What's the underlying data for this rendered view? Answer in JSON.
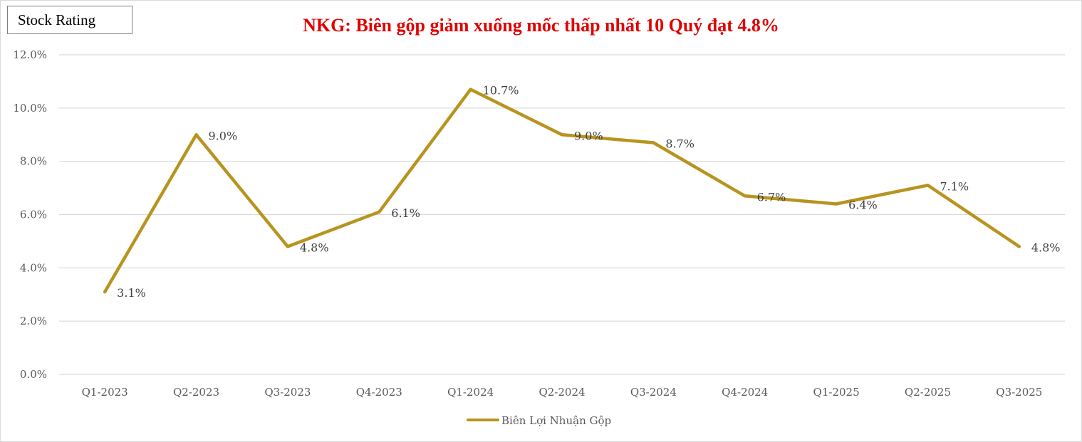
{
  "tag": {
    "label": "Stock Rating"
  },
  "chart_data": {
    "type": "line",
    "title": "NKG: Biên gộp giảm xuống mốc thấp nhất 10 Quý đạt 4.8%",
    "xlabel": "",
    "ylabel": "",
    "categories": [
      "Q1-2023",
      "Q2-2023",
      "Q3-2023",
      "Q4-2023",
      "Q1-2024",
      "Q2-2024",
      "Q3-2024",
      "Q4-2024",
      "Q1-2025",
      "Q2-2025",
      "Q3-2025"
    ],
    "series": [
      {
        "name": "Biên Lợi Nhuận Gộp",
        "values": [
          3.1,
          9.0,
          4.8,
          6.1,
          10.7,
          9.0,
          8.7,
          6.7,
          6.4,
          7.1,
          4.8
        ],
        "labels": [
          "3.1%",
          "9.0%",
          "4.8%",
          "6.1%",
          "10.7%",
          "9.0%",
          "8.7%",
          "6.7%",
          "6.4%",
          "7.1%",
          "4.8%"
        ],
        "color": "#b8941f"
      }
    ],
    "ylim": [
      0,
      12
    ],
    "yticks": [
      0,
      2,
      4,
      6,
      8,
      10,
      12
    ],
    "ytick_labels": [
      "0.0%",
      "2.0%",
      "4.0%",
      "6.0%",
      "8.0%",
      "10.0%",
      "12.0%"
    ],
    "grid": true,
    "gridline_color": "#d9d9d9",
    "legend_position": "bottom"
  }
}
